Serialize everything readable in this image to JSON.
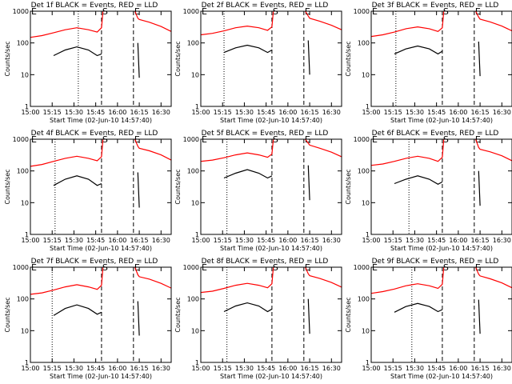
{
  "chart_data": [
    {
      "type": "line",
      "title": "Det 1f BLACK = Events, RED = LLD",
      "xlabel": "Start Time (02-Jun-10 14:57:40)",
      "ylabel": "Counts/sec",
      "x": [
        "15:00",
        "15:08",
        "15:16",
        "15:24",
        "15:32",
        "15:40",
        "15:46",
        "15:49",
        "15:50",
        "16:10",
        "16:12",
        "16:14",
        "16:15",
        "16:22",
        "16:30",
        "16:37"
      ],
      "series": [
        {
          "color": "#ff0000",
          "values": [
            150,
            170,
            210,
            260,
            300,
            260,
            220,
            300,
            1000,
            null,
            1000,
            600,
            550,
            450,
            330,
            230
          ]
        },
        {
          "color": "#000000",
          "values": [
            null,
            null,
            40,
            60,
            75,
            60,
            40,
            45,
            null,
            null,
            null,
            100,
            8,
            null,
            null,
            null
          ]
        }
      ],
      "xlim": [
        "15:00",
        "16:37"
      ],
      "xticks": [
        "15:00",
        "15:15",
        "15:30",
        "15:45",
        "16:00",
        "16:15",
        "16:30"
      ],
      "ylim": [
        1,
        1000
      ],
      "yticks": [
        1,
        10,
        100,
        1000
      ],
      "log_y": true,
      "vlines": [
        {
          "x": "15:33",
          "style": "dotted"
        },
        {
          "x": "15:49",
          "style": "dashed"
        },
        {
          "x": "16:11",
          "style": "dashed"
        }
      ],
      "annotations": [
        {
          "x": "15:00",
          "text": "E"
        },
        {
          "x": "15:49",
          "text": "S"
        },
        {
          "x": "16:11",
          "text": "E"
        }
      ]
    },
    {
      "type": "line",
      "title": "Det 2f BLACK = Events, RED = LLD",
      "xlabel": "Start Time (02-Jun-10 14:57:40)",
      "ylabel": "Counts/sec",
      "x": [
        "15:00",
        "15:08",
        "15:16",
        "15:24",
        "15:32",
        "15:40",
        "15:46",
        "15:49",
        "15:50",
        "16:10",
        "16:12",
        "16:14",
        "16:15",
        "16:22",
        "16:30",
        "16:37"
      ],
      "series": [
        {
          "color": "#ff0000",
          "values": [
            180,
            200,
            240,
            300,
            340,
            300,
            250,
            320,
            1000,
            null,
            1000,
            700,
            600,
            480,
            360,
            260
          ]
        },
        {
          "color": "#000000",
          "values": [
            null,
            null,
            50,
            70,
            85,
            70,
            50,
            60,
            null,
            null,
            null,
            120,
            10,
            null,
            null,
            null
          ]
        }
      ],
      "xlim": [
        "15:00",
        "16:37"
      ],
      "xticks": [
        "15:00",
        "15:15",
        "15:30",
        "15:45",
        "16:00",
        "16:15",
        "16:30"
      ],
      "ylim": [
        1,
        1000
      ],
      "yticks": [
        1,
        10,
        100,
        1000
      ],
      "log_y": true,
      "vlines": [
        {
          "x": "15:16",
          "style": "dotted"
        },
        {
          "x": "15:49",
          "style": "dashed"
        },
        {
          "x": "16:11",
          "style": "dashed"
        }
      ],
      "annotations": [
        {
          "x": "15:00",
          "text": "E"
        },
        {
          "x": "15:49",
          "text": "S"
        },
        {
          "x": "16:11",
          "text": "E"
        }
      ]
    },
    {
      "type": "line",
      "title": "Det 3f BLACK = Events, RED = LLD",
      "xlabel": "Start Time (02-Jun-10 14:57:40)",
      "ylabel": "Counts/sec",
      "x": [
        "15:00",
        "15:08",
        "15:16",
        "15:24",
        "15:32",
        "15:40",
        "15:46",
        "15:49",
        "15:50",
        "16:10",
        "16:12",
        "16:14",
        "16:15",
        "16:22",
        "16:30",
        "16:37"
      ],
      "series": [
        {
          "color": "#ff0000",
          "values": [
            160,
            180,
            220,
            280,
            320,
            280,
            230,
            300,
            1000,
            null,
            1000,
            650,
            560,
            460,
            340,
            240
          ]
        },
        {
          "color": "#000000",
          "values": [
            null,
            null,
            45,
            65,
            80,
            65,
            45,
            55,
            null,
            null,
            null,
            110,
            9,
            null,
            null,
            null
          ]
        }
      ],
      "xlim": [
        "15:00",
        "16:37"
      ],
      "xticks": [
        "15:00",
        "15:15",
        "15:30",
        "15:45",
        "16:00",
        "16:15",
        "16:30"
      ],
      "ylim": [
        1,
        1000
      ],
      "yticks": [
        1,
        10,
        100,
        1000
      ],
      "log_y": true,
      "vlines": [
        {
          "x": "15:17",
          "style": "dotted"
        },
        {
          "x": "15:49",
          "style": "dashed"
        },
        {
          "x": "16:11",
          "style": "dashed"
        }
      ],
      "annotations": [
        {
          "x": "15:00",
          "text": "E"
        },
        {
          "x": "15:49",
          "text": "S"
        },
        {
          "x": "16:11",
          "text": "E"
        }
      ]
    },
    {
      "type": "line",
      "title": "Det 4f BLACK = Events, RED = LLD",
      "xlabel": "Start Time (02-Jun-10 14:57:40)",
      "ylabel": "Counts/sec",
      "x": [
        "15:00",
        "15:08",
        "15:16",
        "15:24",
        "15:32",
        "15:40",
        "15:46",
        "15:49",
        "15:50",
        "16:10",
        "16:12",
        "16:14",
        "16:15",
        "16:22",
        "16:30",
        "16:37"
      ],
      "series": [
        {
          "color": "#ff0000",
          "values": [
            140,
            160,
            200,
            250,
            290,
            250,
            210,
            280,
            1000,
            null,
            1000,
            600,
            520,
            430,
            320,
            220
          ]
        },
        {
          "color": "#000000",
          "values": [
            null,
            null,
            35,
            55,
            70,
            55,
            35,
            40,
            null,
            null,
            null,
            90,
            7,
            null,
            null,
            null
          ]
        }
      ],
      "xlim": [
        "15:00",
        "16:37"
      ],
      "xticks": [
        "15:00",
        "15:15",
        "15:30",
        "15:45",
        "16:00",
        "16:15",
        "16:30"
      ],
      "ylim": [
        1,
        1000
      ],
      "yticks": [
        1,
        10,
        100,
        1000
      ],
      "log_y": true,
      "vlines": [
        {
          "x": "15:17",
          "style": "dotted"
        },
        {
          "x": "15:49",
          "style": "dashed"
        },
        {
          "x": "16:11",
          "style": "dashed"
        }
      ],
      "annotations": [
        {
          "x": "15:00",
          "text": "E"
        },
        {
          "x": "15:49",
          "text": "S"
        },
        {
          "x": "16:11",
          "text": "E"
        }
      ]
    },
    {
      "type": "line",
      "title": "Det 5f BLACK = Events, RED = LLD",
      "xlabel": "Start Time (02-Jun-10 14:57:40)",
      "ylabel": "Counts/sec",
      "x": [
        "15:00",
        "15:08",
        "15:16",
        "15:24",
        "15:32",
        "15:40",
        "15:46",
        "15:49",
        "15:50",
        "16:10",
        "16:12",
        "16:14",
        "16:15",
        "16:22",
        "16:30",
        "16:37"
      ],
      "series": [
        {
          "color": "#ff0000",
          "values": [
            200,
            220,
            260,
            320,
            370,
            320,
            270,
            340,
            1000,
            null,
            1000,
            750,
            650,
            520,
            390,
            280
          ]
        },
        {
          "color": "#000000",
          "values": [
            null,
            null,
            60,
            85,
            110,
            85,
            60,
            70,
            null,
            null,
            null,
            150,
            12,
            null,
            null,
            null
          ]
        }
      ],
      "xlim": [
        "15:00",
        "16:37"
      ],
      "xticks": [
        "15:00",
        "15:15",
        "15:30",
        "15:45",
        "16:00",
        "16:15",
        "16:30"
      ],
      "ylim": [
        1,
        1000
      ],
      "yticks": [
        1,
        10,
        100,
        1000
      ],
      "log_y": true,
      "vlines": [
        {
          "x": "15:18",
          "style": "dotted"
        },
        {
          "x": "15:49",
          "style": "dashed"
        },
        {
          "x": "16:11",
          "style": "dashed"
        }
      ],
      "annotations": [
        {
          "x": "15:00",
          "text": "E"
        },
        {
          "x": "15:49",
          "text": "S"
        },
        {
          "x": "16:11",
          "text": "E"
        }
      ]
    },
    {
      "type": "line",
      "title": "Det 6f BLACK = Events, RED = LLD",
      "xlabel": "Start Time (02-Jun-10 14:57:40)",
      "ylabel": "Counts/sec",
      "x": [
        "15:00",
        "15:08",
        "15:16",
        "15:24",
        "15:32",
        "15:40",
        "15:46",
        "15:49",
        "15:50",
        "16:10",
        "16:12",
        "16:14",
        "16:15",
        "16:22",
        "16:30",
        "16:37"
      ],
      "series": [
        {
          "color": "#ff0000",
          "values": [
            150,
            165,
            200,
            250,
            290,
            250,
            200,
            270,
            1000,
            null,
            1000,
            550,
            480,
            400,
            300,
            210
          ]
        },
        {
          "color": "#000000",
          "values": [
            null,
            null,
            40,
            55,
            70,
            55,
            38,
            45,
            null,
            null,
            null,
            100,
            8,
            null,
            null,
            null
          ]
        }
      ],
      "xlim": [
        "15:00",
        "16:37"
      ],
      "xticks": [
        "15:00",
        "15:15",
        "15:30",
        "15:45",
        "16:00",
        "16:15",
        "16:30"
      ],
      "ylim": [
        1,
        1000
      ],
      "yticks": [
        1,
        10,
        100,
        1000
      ],
      "log_y": true,
      "vlines": [
        {
          "x": "15:26",
          "style": "dotted"
        },
        {
          "x": "15:49",
          "style": "dashed"
        },
        {
          "x": "16:11",
          "style": "dashed"
        }
      ],
      "annotations": [
        {
          "x": "15:00",
          "text": "E"
        },
        {
          "x": "15:49",
          "text": "S"
        },
        {
          "x": "16:11",
          "text": "E"
        }
      ]
    },
    {
      "type": "line",
      "title": "Det 7f BLACK = Events, RED = LLD",
      "xlabel": "Start Time (02-Jun-10 14:57:40)",
      "ylabel": "Counts/sec",
      "x": [
        "15:00",
        "15:08",
        "15:16",
        "15:24",
        "15:32",
        "15:40",
        "15:46",
        "15:49",
        "15:50",
        "16:10",
        "16:12",
        "16:14",
        "16:15",
        "16:22",
        "16:30",
        "16:37"
      ],
      "series": [
        {
          "color": "#ff0000",
          "values": [
            140,
            155,
            190,
            240,
            280,
            240,
            200,
            270,
            1000,
            null,
            1000,
            580,
            500,
            420,
            310,
            220
          ]
        },
        {
          "color": "#000000",
          "values": [
            null,
            null,
            30,
            50,
            65,
            50,
            33,
            38,
            null,
            null,
            null,
            85,
            7,
            null,
            null,
            null
          ]
        }
      ],
      "xlim": [
        "15:00",
        "16:37"
      ],
      "xticks": [
        "15:00",
        "15:15",
        "15:30",
        "15:45",
        "16:00",
        "16:15",
        "16:30"
      ],
      "ylim": [
        1,
        1000
      ],
      "yticks": [
        1,
        10,
        100,
        1000
      ],
      "log_y": true,
      "vlines": [
        {
          "x": "15:15",
          "style": "dotted"
        },
        {
          "x": "15:49",
          "style": "dashed"
        },
        {
          "x": "16:11",
          "style": "dashed"
        }
      ],
      "annotations": [
        {
          "x": "15:00",
          "text": "E"
        },
        {
          "x": "15:49",
          "text": "S"
        },
        {
          "x": "16:11",
          "text": "E"
        }
      ]
    },
    {
      "type": "line",
      "title": "Det 8f BLACK = Events, RED = LLD",
      "xlabel": "Start Time (02-Jun-10 14:57:40)",
      "ylabel": "Counts/sec",
      "x": [
        "15:00",
        "15:08",
        "15:16",
        "15:24",
        "15:32",
        "15:40",
        "15:46",
        "15:49",
        "15:50",
        "16:10",
        "16:12",
        "16:14",
        "16:15",
        "16:22",
        "16:30",
        "16:37"
      ],
      "series": [
        {
          "color": "#ff0000",
          "values": [
            160,
            175,
            215,
            270,
            310,
            270,
            225,
            300,
            1000,
            null,
            1000,
            620,
            540,
            440,
            330,
            235
          ]
        },
        {
          "color": "#000000",
          "values": [
            null,
            null,
            40,
            60,
            75,
            60,
            40,
            48,
            null,
            null,
            null,
            100,
            8,
            null,
            null,
            null
          ]
        }
      ],
      "xlim": [
        "15:00",
        "16:37"
      ],
      "xticks": [
        "15:00",
        "15:15",
        "15:30",
        "15:45",
        "16:00",
        "16:15",
        "16:30"
      ],
      "ylim": [
        1,
        1000
      ],
      "yticks": [
        1,
        10,
        100,
        1000
      ],
      "log_y": true,
      "vlines": [
        {
          "x": "15:18",
          "style": "dotted"
        },
        {
          "x": "15:49",
          "style": "dashed"
        },
        {
          "x": "16:11",
          "style": "dashed"
        }
      ],
      "annotations": [
        {
          "x": "15:00",
          "text": "E"
        },
        {
          "x": "15:49",
          "text": "S"
        },
        {
          "x": "16:11",
          "text": "E"
        }
      ]
    },
    {
      "type": "line",
      "title": "Det 9f BLACK = Events, RED = LLD",
      "xlabel": "Start Time (02-Jun-10 14:57:40)",
      "ylabel": "Counts/sec",
      "x": [
        "15:00",
        "15:08",
        "15:16",
        "15:24",
        "15:32",
        "15:40",
        "15:46",
        "15:49",
        "15:50",
        "16:10",
        "16:12",
        "16:14",
        "16:15",
        "16:22",
        "16:30",
        "16:37"
      ],
      "series": [
        {
          "color": "#ff0000",
          "values": [
            150,
            170,
            205,
            260,
            300,
            260,
            215,
            290,
            1000,
            null,
            1000,
            600,
            530,
            430,
            320,
            225
          ]
        },
        {
          "color": "#000000",
          "values": [
            null,
            null,
            38,
            58,
            72,
            58,
            40,
            46,
            null,
            null,
            null,
            95,
            8,
            null,
            null,
            null
          ]
        }
      ],
      "xlim": [
        "15:00",
        "16:37"
      ],
      "xticks": [
        "15:00",
        "15:15",
        "15:30",
        "15:45",
        "16:00",
        "16:15",
        "16:30"
      ],
      "ylim": [
        1,
        1000
      ],
      "yticks": [
        1,
        10,
        100,
        1000
      ],
      "log_y": true,
      "vlines": [
        {
          "x": "15:28",
          "style": "dotted"
        },
        {
          "x": "15:49",
          "style": "dashed"
        },
        {
          "x": "16:11",
          "style": "dashed"
        }
      ],
      "annotations": [
        {
          "x": "15:00",
          "text": "E"
        },
        {
          "x": "15:49",
          "text": "S"
        },
        {
          "x": "16:11",
          "text": "E"
        }
      ]
    }
  ]
}
